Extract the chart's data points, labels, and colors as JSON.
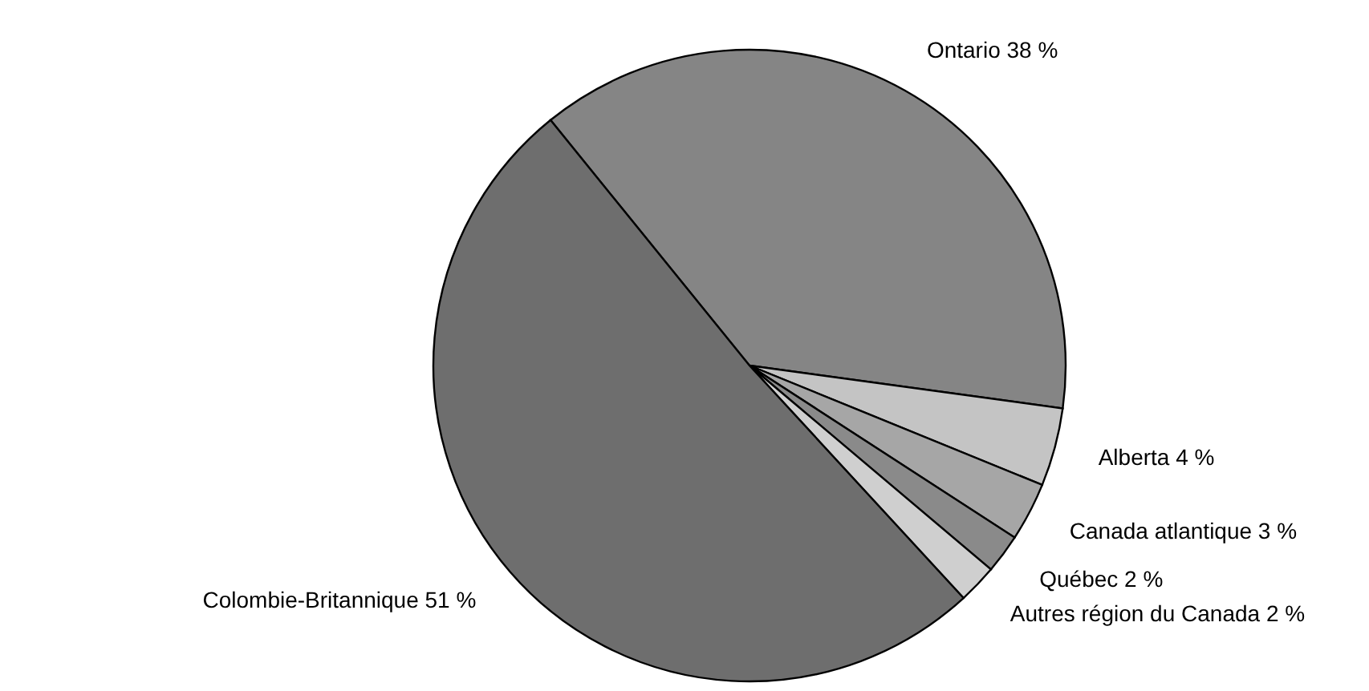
{
  "chart_data": {
    "type": "pie",
    "categories": [
      "Ontario",
      "Alberta",
      "Canada atlantique",
      "Québec",
      "Autres région du Canada",
      "Colombie-Britannique"
    ],
    "values": [
      38,
      4,
      3,
      2,
      2,
      51
    ],
    "value_labels": [
      "38 %",
      "4 %",
      "3 %",
      "2 %",
      "2 %",
      "51 %"
    ],
    "colors": [
      "#858585",
      "#c4c4c4",
      "#a6a6a6",
      "#8a8a8a",
      "#cfcfcf",
      "#6e6e6e"
    ]
  }
}
